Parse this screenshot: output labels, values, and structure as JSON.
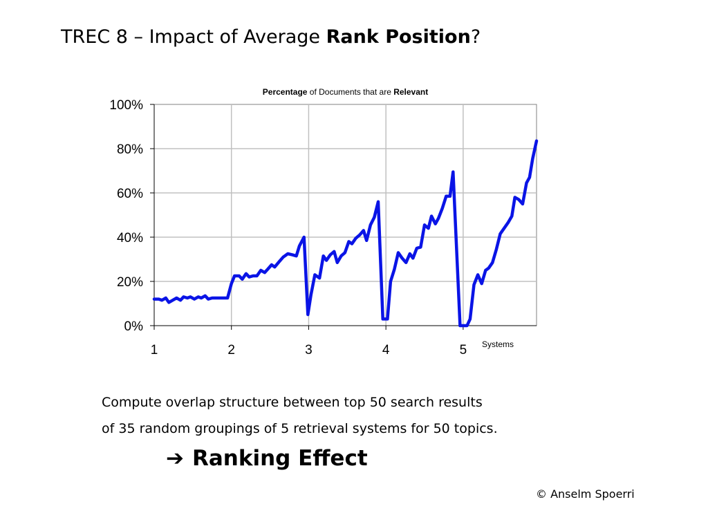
{
  "slide": {
    "title_prefix": "TREC 8 – Impact of Average ",
    "title_bold": "Rank Position",
    "title_suffix": "?",
    "caption_line1": "Compute overlap structure between top 50 search results",
    "caption_line2": "of 35 random groupings of 5 retrieval systems for 50 topics.",
    "conclusion_arrow": "➔",
    "conclusion_text": "Ranking Effect",
    "copyright": "© Anselm Spoerri"
  },
  "chart_data": {
    "type": "line",
    "title_parts": [
      {
        "text": "Percentage",
        "bold": true
      },
      {
        "text": " of Documents that are ",
        "bold": false
      },
      {
        "text": "Relevant",
        "bold": true
      }
    ],
    "xlabel": "Systems",
    "ylabel": "",
    "x_ticks": [
      "1",
      "2",
      "3",
      "4",
      "5"
    ],
    "xlim": [
      1,
      5.95
    ],
    "ylim": [
      0,
      100
    ],
    "y_ticks": [
      "0%",
      "20%",
      "40%",
      "60%",
      "80%",
      "100%"
    ],
    "grid": true,
    "line_color": "#0a14e6",
    "series": [
      {
        "values": [
          [
            1.0,
            12
          ],
          [
            1.06,
            12
          ],
          [
            1.1,
            11.5
          ],
          [
            1.15,
            12.5
          ],
          [
            1.19,
            10.5
          ],
          [
            1.24,
            11.5
          ],
          [
            1.29,
            12.5
          ],
          [
            1.34,
            11.5
          ],
          [
            1.38,
            13
          ],
          [
            1.43,
            12.5
          ],
          [
            1.47,
            13
          ],
          [
            1.52,
            12
          ],
          [
            1.57,
            13
          ],
          [
            1.61,
            12.5
          ],
          [
            1.66,
            13.5
          ],
          [
            1.7,
            12
          ],
          [
            1.75,
            12.5
          ],
          [
            1.85,
            12.5
          ],
          [
            1.95,
            12.5
          ],
          [
            2.0,
            19
          ],
          [
            2.04,
            22.5
          ],
          [
            2.1,
            22.5
          ],
          [
            2.14,
            21
          ],
          [
            2.19,
            23.5
          ],
          [
            2.23,
            22
          ],
          [
            2.28,
            22.5
          ],
          [
            2.33,
            22.5
          ],
          [
            2.38,
            25
          ],
          [
            2.43,
            24
          ],
          [
            2.47,
            25.5
          ],
          [
            2.52,
            27.5
          ],
          [
            2.56,
            26.5
          ],
          [
            2.62,
            29
          ],
          [
            2.67,
            31
          ],
          [
            2.73,
            32.5
          ],
          [
            2.79,
            32
          ],
          [
            2.84,
            31.5
          ],
          [
            2.88,
            36
          ],
          [
            2.94,
            40
          ],
          [
            2.99,
            5
          ],
          [
            3.03,
            14
          ],
          [
            3.08,
            23
          ],
          [
            3.14,
            21.5
          ],
          [
            3.19,
            31.5
          ],
          [
            3.23,
            29.5
          ],
          [
            3.28,
            32
          ],
          [
            3.33,
            33.5
          ],
          [
            3.37,
            28.5
          ],
          [
            3.42,
            31.5
          ],
          [
            3.47,
            33
          ],
          [
            3.52,
            38
          ],
          [
            3.56,
            37
          ],
          [
            3.61,
            39.5
          ],
          [
            3.66,
            41
          ],
          [
            3.71,
            43
          ],
          [
            3.75,
            38.5
          ],
          [
            3.8,
            45.5
          ],
          [
            3.85,
            49
          ],
          [
            3.9,
            56
          ],
          [
            3.96,
            3
          ],
          [
            4.02,
            3
          ],
          [
            4.06,
            20
          ],
          [
            4.11,
            25.5
          ],
          [
            4.16,
            33
          ],
          [
            4.21,
            30.5
          ],
          [
            4.26,
            28.5
          ],
          [
            4.31,
            32.5
          ],
          [
            4.35,
            30.5
          ],
          [
            4.4,
            35
          ],
          [
            4.45,
            35.5
          ],
          [
            4.5,
            45.5
          ],
          [
            4.55,
            44
          ],
          [
            4.59,
            49.5
          ],
          [
            4.64,
            46
          ],
          [
            4.68,
            48.5
          ],
          [
            4.73,
            53
          ],
          [
            4.78,
            58.5
          ],
          [
            4.83,
            58.5
          ],
          [
            4.87,
            69.5
          ],
          [
            4.96,
            0
          ],
          [
            5.05,
            0
          ],
          [
            5.09,
            3
          ],
          [
            5.14,
            18.5
          ],
          [
            5.19,
            23
          ],
          [
            5.24,
            19
          ],
          [
            5.29,
            25
          ],
          [
            5.33,
            26
          ],
          [
            5.38,
            28.5
          ],
          [
            5.43,
            34.5
          ],
          [
            5.48,
            41.5
          ],
          [
            5.53,
            44
          ],
          [
            5.58,
            46.5
          ],
          [
            5.63,
            49.5
          ],
          [
            5.67,
            58
          ],
          [
            5.72,
            57
          ],
          [
            5.77,
            55
          ],
          [
            5.82,
            64.5
          ],
          [
            5.86,
            67
          ],
          [
            5.9,
            75.5
          ],
          [
            5.95,
            83.5
          ]
        ]
      }
    ]
  }
}
